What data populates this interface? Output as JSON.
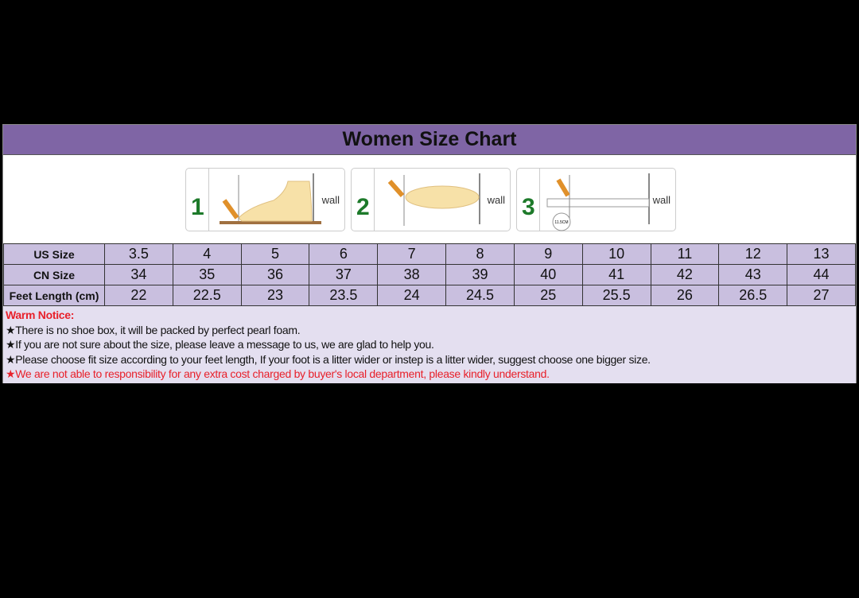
{
  "title": "Women Size Chart",
  "steps": [
    {
      "number": "1",
      "wall_label": "wall"
    },
    {
      "number": "2",
      "wall_label": "wall"
    },
    {
      "number": "3",
      "wall_label": "wall",
      "measure_label": "11.5CM"
    }
  ],
  "table": {
    "rows": [
      {
        "label": "US Size",
        "values": [
          "3.5",
          "4",
          "5",
          "6",
          "7",
          "8",
          "9",
          "10",
          "11",
          "12",
          "13"
        ]
      },
      {
        "label": "CN Size",
        "values": [
          "34",
          "35",
          "36",
          "37",
          "38",
          "39",
          "40",
          "41",
          "42",
          "43",
          "44"
        ]
      },
      {
        "label": "Feet Length (cm)",
        "values": [
          "22",
          "22.5",
          "23",
          "23.5",
          "24",
          "24.5",
          "25",
          "25.5",
          "26",
          "26.5",
          "27"
        ]
      }
    ]
  },
  "notice": {
    "heading": "Warm Notice:",
    "bullet": "★",
    "items": [
      "There is no shoe box, it will be packed by perfect pearl foam.",
      "If you are not sure about the size, please leave a message to us, we are glad to help you.",
      "Please choose fit size according to your feet length, If your foot is a litter wider or instep is a litter wider, suggest choose one bigger size.",
      "We are not able to responsibility for any extra cost charged by buyer's local department, please kindly understand."
    ]
  },
  "colors": {
    "header": "#7f65a5",
    "cells": "#c9bfdf",
    "notice_bg": "#e4dff0",
    "warning": "#e8202a",
    "step_number": "#1d7a2a"
  }
}
